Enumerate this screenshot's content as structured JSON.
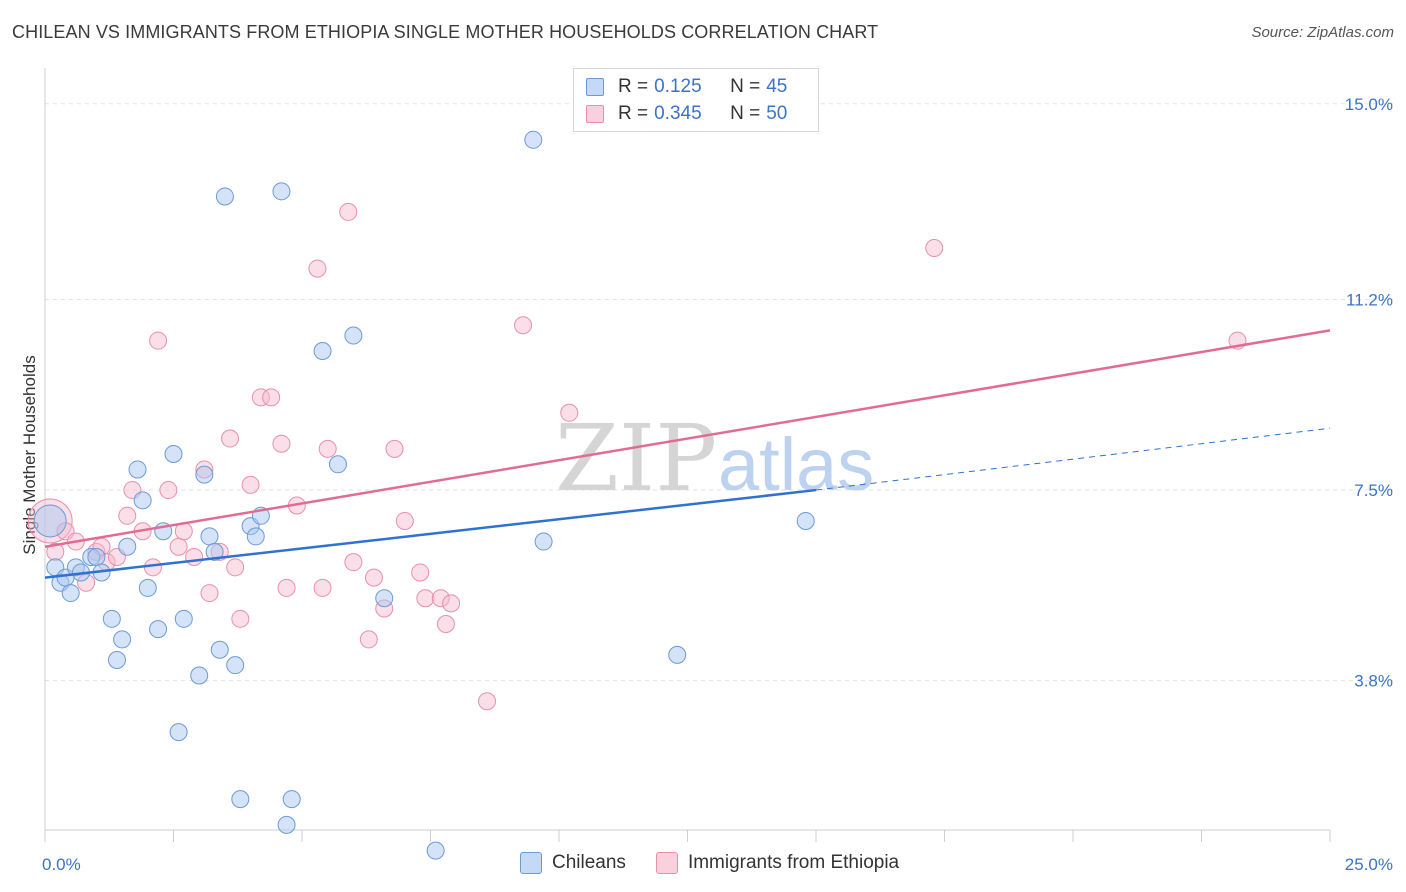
{
  "title": "CHILEAN VS IMMIGRANTS FROM ETHIOPIA SINGLE MOTHER HOUSEHOLDS CORRELATION CHART",
  "source": "Source: ZipAtlas.com",
  "watermark": {
    "zip": "ZIP",
    "atlas": "atlas"
  },
  "legend": {
    "rows": [
      {
        "r_label": "R =",
        "r_value": "0.125",
        "n_label": "N =",
        "n_value": "45"
      },
      {
        "r_label": "R =",
        "r_value": "0.345",
        "n_label": "N =",
        "n_value": "50"
      }
    ]
  },
  "bottom_legend": {
    "s1": "Chileans",
    "s2": "Immigrants from Ethiopia"
  },
  "colors": {
    "blue_fill": "#a9c8f0",
    "blue_stroke": "#6c9ad6",
    "blue_line": "#2f72d0",
    "pink_fill": "#f7b9cc",
    "pink_stroke": "#e98fab",
    "pink_line": "#e26b93",
    "tick_text": "#3b73c8",
    "grid": "#dde3ea"
  },
  "chart_data": {
    "type": "scatter",
    "title": "CHILEAN VS IMMIGRANTS FROM ETHIOPIA SINGLE MOTHER HOUSEHOLDS CORRELATION CHART",
    "xlabel": "",
    "ylabel": "Single Mother Households",
    "xlim": [
      0,
      25
    ],
    "ylim": [
      0.9,
      15.5
    ],
    "x_tick_labels": [
      "0.0%",
      "25.0%"
    ],
    "y_ticks": [
      3.8,
      7.5,
      11.2,
      15.0
    ],
    "y_tick_labels": [
      "3.8%",
      "7.5%",
      "11.2%",
      "15.0%"
    ],
    "grid": "horizontal dashed",
    "series": [
      {
        "name": "Chileans",
        "color": "#a9c8f0",
        "points": [
          [
            0.1,
            6.9
          ],
          [
            0.2,
            6.0
          ],
          [
            0.3,
            5.7
          ],
          [
            0.4,
            5.8
          ],
          [
            0.5,
            5.5
          ],
          [
            0.6,
            6.0
          ],
          [
            0.7,
            5.9
          ],
          [
            0.9,
            6.2
          ],
          [
            1.0,
            6.2
          ],
          [
            1.1,
            5.9
          ],
          [
            1.3,
            5.0
          ],
          [
            1.5,
            4.6
          ],
          [
            1.4,
            4.2
          ],
          [
            1.6,
            6.4
          ],
          [
            1.8,
            7.9
          ],
          [
            1.9,
            7.3
          ],
          [
            2.0,
            5.6
          ],
          [
            2.2,
            4.8
          ],
          [
            2.3,
            6.7
          ],
          [
            2.5,
            8.2
          ],
          [
            2.6,
            2.8
          ],
          [
            2.7,
            5.0
          ],
          [
            3.0,
            3.9
          ],
          [
            3.1,
            7.8
          ],
          [
            3.2,
            6.6
          ],
          [
            3.3,
            6.3
          ],
          [
            3.4,
            4.4
          ],
          [
            3.5,
            13.2
          ],
          [
            3.7,
            4.1
          ],
          [
            3.8,
            1.5
          ],
          [
            4.0,
            6.8
          ],
          [
            4.1,
            6.6
          ],
          [
            4.2,
            7.0
          ],
          [
            4.6,
            13.3
          ],
          [
            4.7,
            1.0
          ],
          [
            4.8,
            1.5
          ],
          [
            5.4,
            10.2
          ],
          [
            5.7,
            8.0
          ],
          [
            6.0,
            10.5
          ],
          [
            6.6,
            5.4
          ],
          [
            7.6,
            0.5
          ],
          [
            9.5,
            14.3
          ],
          [
            9.7,
            6.5
          ],
          [
            12.3,
            4.3
          ],
          [
            14.8,
            6.9
          ]
        ]
      },
      {
        "name": "Immigrants from Ethiopia",
        "color": "#f7b9cc",
        "points": [
          [
            0.1,
            6.9
          ],
          [
            0.2,
            6.3
          ],
          [
            0.4,
            6.7
          ],
          [
            0.6,
            6.5
          ],
          [
            0.8,
            5.7
          ],
          [
            1.0,
            6.3
          ],
          [
            1.1,
            6.4
          ],
          [
            1.2,
            6.1
          ],
          [
            1.4,
            6.2
          ],
          [
            1.6,
            7.0
          ],
          [
            1.7,
            7.5
          ],
          [
            1.9,
            6.7
          ],
          [
            2.1,
            6.0
          ],
          [
            2.2,
            10.4
          ],
          [
            2.4,
            7.5
          ],
          [
            2.6,
            6.4
          ],
          [
            2.7,
            6.7
          ],
          [
            2.9,
            6.2
          ],
          [
            3.1,
            7.9
          ],
          [
            3.2,
            5.5
          ],
          [
            3.4,
            6.3
          ],
          [
            3.6,
            8.5
          ],
          [
            3.7,
            6.0
          ],
          [
            3.8,
            5.0
          ],
          [
            4.0,
            7.6
          ],
          [
            4.2,
            9.3
          ],
          [
            4.4,
            9.3
          ],
          [
            4.6,
            8.4
          ],
          [
            4.7,
            5.6
          ],
          [
            4.9,
            7.2
          ],
          [
            5.3,
            11.8
          ],
          [
            5.4,
            5.6
          ],
          [
            5.5,
            8.3
          ],
          [
            5.9,
            12.9
          ],
          [
            6.0,
            6.1
          ],
          [
            6.3,
            4.6
          ],
          [
            6.4,
            5.8
          ],
          [
            6.6,
            5.2
          ],
          [
            6.8,
            8.3
          ],
          [
            7.0,
            6.9
          ],
          [
            7.3,
            5.9
          ],
          [
            7.4,
            5.4
          ],
          [
            7.7,
            5.4
          ],
          [
            7.8,
            4.9
          ],
          [
            7.9,
            5.3
          ],
          [
            8.6,
            3.4
          ],
          [
            9.3,
            10.7
          ],
          [
            10.2,
            9.0
          ],
          [
            17.3,
            12.2
          ],
          [
            23.2,
            10.4
          ]
        ]
      }
    ],
    "trend_lines": [
      {
        "series": "Chileans",
        "solid": [
          [
            0,
            5.8
          ],
          [
            15,
            7.5
          ]
        ],
        "dashed": [
          [
            15,
            7.5
          ],
          [
            25,
            8.7
          ]
        ]
      },
      {
        "series": "Immigrants from Ethiopia",
        "solid": [
          [
            0,
            6.4
          ],
          [
            25,
            10.6
          ]
        ]
      }
    ]
  }
}
